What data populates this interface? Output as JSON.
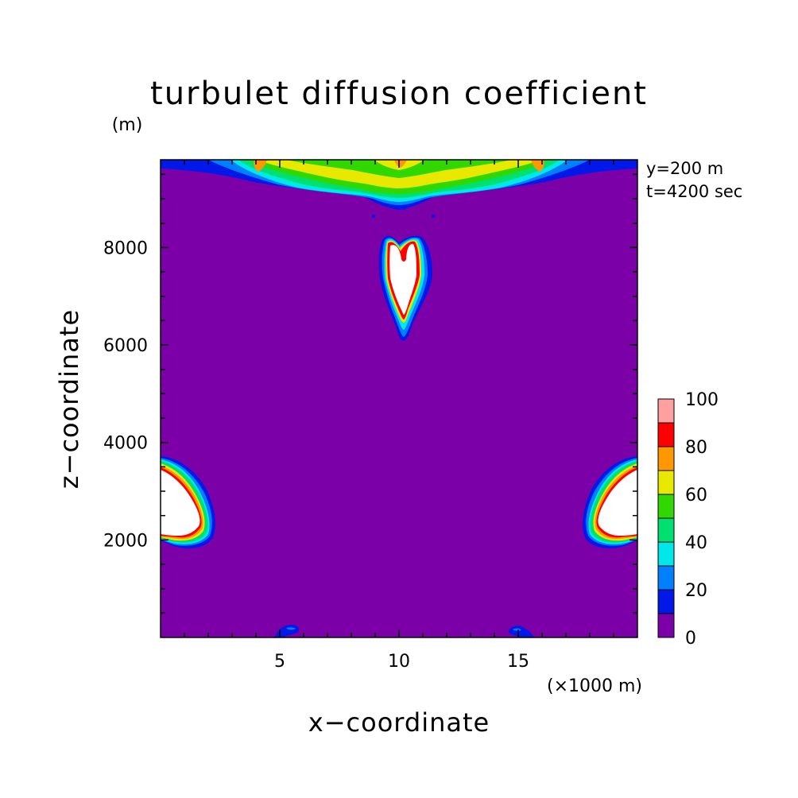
{
  "chart_data": {
    "type": "heatmap",
    "title": "turbulet diffusion coefficient",
    "ylabel": "z−coordinate",
    "xlabel": "x−coordinate",
    "y_unit": "(m)",
    "x_unit": "(×1000 m)",
    "xlim": [
      0,
      20
    ],
    "ylim": [
      0,
      9800
    ],
    "x_ticks": [
      "5",
      "10",
      "15"
    ],
    "x_tick_values": [
      5,
      10,
      15
    ],
    "y_ticks": [
      "2000",
      "4000",
      "6000",
      "8000"
    ],
    "y_tick_values": [
      2000,
      4000,
      6000,
      8000
    ],
    "annotations": [
      "y=200 m",
      "t=4200 sec"
    ],
    "colorbar": {
      "levels": [
        0,
        10,
        20,
        30,
        40,
        50,
        60,
        70,
        80,
        90,
        100
      ],
      "labels": [
        "0",
        "20",
        "40",
        "60",
        "80",
        "100"
      ],
      "label_values": [
        0,
        20,
        40,
        60,
        80,
        100
      ],
      "colors": [
        "#7b00a8",
        "#0018e8",
        "#0080ff",
        "#00e8e8",
        "#00e070",
        "#30d800",
        "#e8e800",
        "#ff9800",
        "#ff0000",
        "#ffa0a0"
      ],
      "above_max_color": "#ffffff"
    },
    "background_value": 0,
    "features": [
      {
        "name": "upper-central-plume",
        "x_range": [
          9.5,
          10.8
        ],
        "z_range": [
          6300,
          8300
        ],
        "max": "above 100"
      },
      {
        "name": "left-lower-cell",
        "x_range": [
          0,
          2.2
        ],
        "z_range": [
          2000,
          3800
        ],
        "max": "above 100"
      },
      {
        "name": "right-lower-cell",
        "x_range": [
          17.8,
          20
        ],
        "z_range": [
          2000,
          3800
        ],
        "max": "above 100"
      },
      {
        "name": "top-boundary-layer",
        "x_range": [
          0,
          20
        ],
        "z_range": [
          8900,
          9800
        ],
        "max": 90
      },
      {
        "name": "surface-patch-left",
        "x_range": [
          4.9,
          5.9
        ],
        "z_range": [
          0,
          300
        ],
        "max": 20
      },
      {
        "name": "surface-patch-right",
        "x_range": [
          14.8,
          15.8
        ],
        "z_range": [
          0,
          300
        ],
        "max": 20
      }
    ]
  }
}
